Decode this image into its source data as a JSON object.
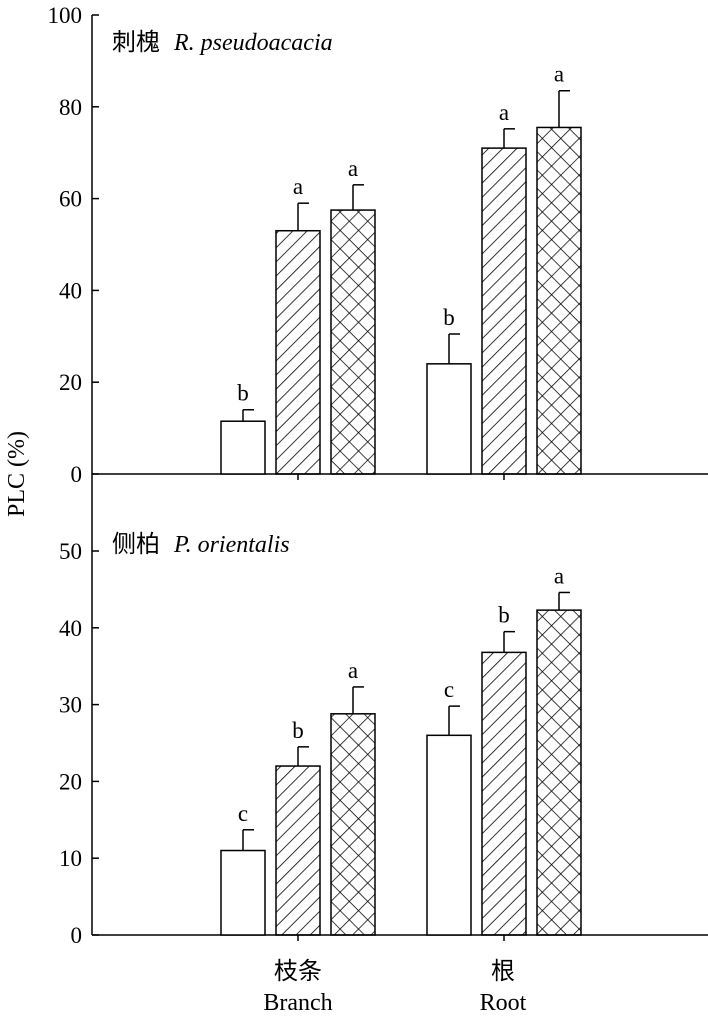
{
  "figure": {
    "ylabel": "PLC (%)",
    "groups": [
      {
        "cn": "枝条",
        "en": "Branch"
      },
      {
        "cn": "根",
        "en": "Root"
      }
    ]
  },
  "chart_data": [
    {
      "type": "bar",
      "title_cn": "刺槐",
      "title_latin": "R. pseudoacacia",
      "categories": [
        "Branch",
        "Root"
      ],
      "ylim": [
        0,
        100
      ],
      "yticks": [
        0,
        20,
        40,
        60,
        80,
        100
      ],
      "series": [
        {
          "fill": "open",
          "values": [
            11.5,
            24
          ],
          "errors": [
            2.5,
            6.5
          ],
          "labels": [
            "b",
            "b"
          ]
        },
        {
          "fill": "hatch",
          "values": [
            53,
            71
          ],
          "errors": [
            6,
            4.2
          ],
          "labels": [
            "a",
            "a"
          ]
        },
        {
          "fill": "crosshatch",
          "values": [
            57.5,
            75.5
          ],
          "errors": [
            5.5,
            8
          ],
          "labels": [
            "a",
            "a"
          ]
        }
      ]
    },
    {
      "type": "bar",
      "title_cn": "侧柏",
      "title_latin": "P. orientalis",
      "categories": [
        "Branch",
        "Root"
      ],
      "ylim": [
        0,
        60
      ],
      "yticks": [
        0,
        10,
        20,
        30,
        40,
        50
      ],
      "series": [
        {
          "fill": "open",
          "values": [
            11,
            26
          ],
          "errors": [
            2.7,
            3.8
          ],
          "labels": [
            "c",
            "c"
          ]
        },
        {
          "fill": "hatch",
          "values": [
            22,
            36.8
          ],
          "errors": [
            2.5,
            2.7
          ],
          "labels": [
            "b",
            "b"
          ]
        },
        {
          "fill": "crosshatch",
          "values": [
            28.8,
            42.3
          ],
          "errors": [
            3.5,
            2.3
          ],
          "labels": [
            "a",
            "a"
          ]
        }
      ]
    }
  ]
}
